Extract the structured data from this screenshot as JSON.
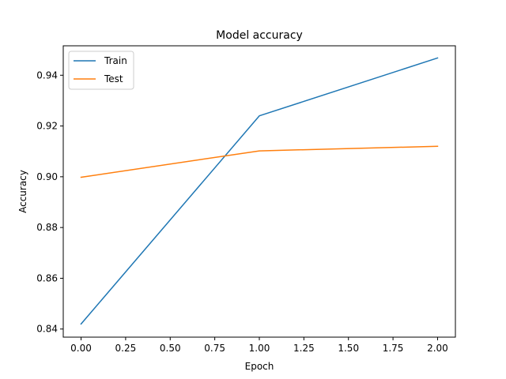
{
  "chart_data": {
    "type": "line",
    "title": "Model accuracy",
    "xlabel": "Epoch",
    "ylabel": "Accuracy",
    "xlim": [
      -0.1,
      2.1
    ],
    "ylim": [
      0.8368,
      0.9516
    ],
    "x_ticks": [
      0.0,
      0.25,
      0.5,
      0.75,
      1.0,
      1.25,
      1.5,
      1.75,
      2.0
    ],
    "x_tick_labels": [
      "0.00",
      "0.25",
      "0.50",
      "0.75",
      "1.00",
      "1.25",
      "1.50",
      "1.75",
      "2.00"
    ],
    "y_ticks": [
      0.84,
      0.86,
      0.88,
      0.9,
      0.92,
      0.94
    ],
    "y_tick_labels": [
      "0.84",
      "0.86",
      "0.88",
      "0.90",
      "0.92",
      "0.94"
    ],
    "x": [
      0,
      1,
      2
    ],
    "series": [
      {
        "name": "Train",
        "color": "#1f77b4",
        "values": [
          0.842,
          0.924,
          0.9468
        ]
      },
      {
        "name": "Test",
        "color": "#ff7f0e",
        "values": [
          0.8998,
          0.9102,
          0.912
        ]
      }
    ],
    "legend_position": "upper-left",
    "grid": false
  }
}
